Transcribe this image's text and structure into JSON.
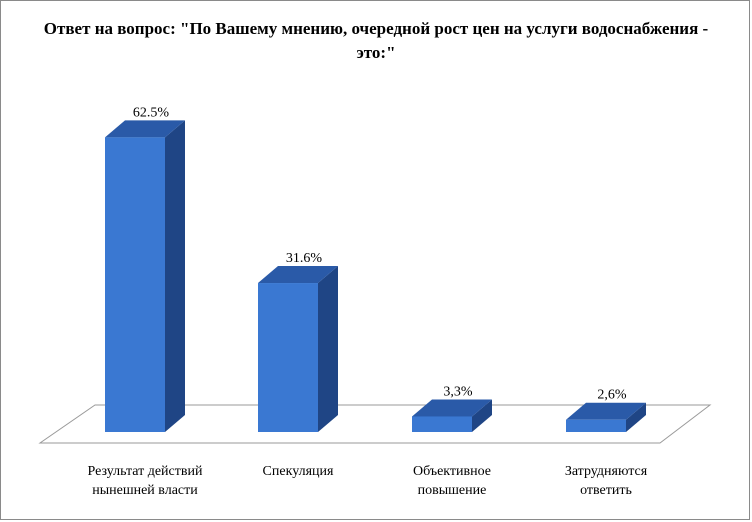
{
  "chart_data": {
    "type": "bar",
    "title": "Ответ на вопрос: \"По Вашему мнению, очередной рост цен на услуги водоснабжения - это:\"",
    "categories": [
      [
        "Результат действий",
        "нынешней власти"
      ],
      [
        "Спекуляция"
      ],
      [
        "Объективное",
        "повышение"
      ],
      [
        "Затрудняются",
        "ответить"
      ]
    ],
    "values": [
      62.5,
      31.6,
      3.3,
      2.6
    ],
    "value_labels": [
      "62.5%",
      "31.6%",
      "3,3%",
      "2,6%"
    ],
    "ylim": [
      0,
      70
    ],
    "grid": false,
    "legend": "none",
    "colors": {
      "front": "#3a78d2",
      "top": "#2a5aa8",
      "side": "#1f4585",
      "floor_edge": "#9a9a9a"
    }
  }
}
